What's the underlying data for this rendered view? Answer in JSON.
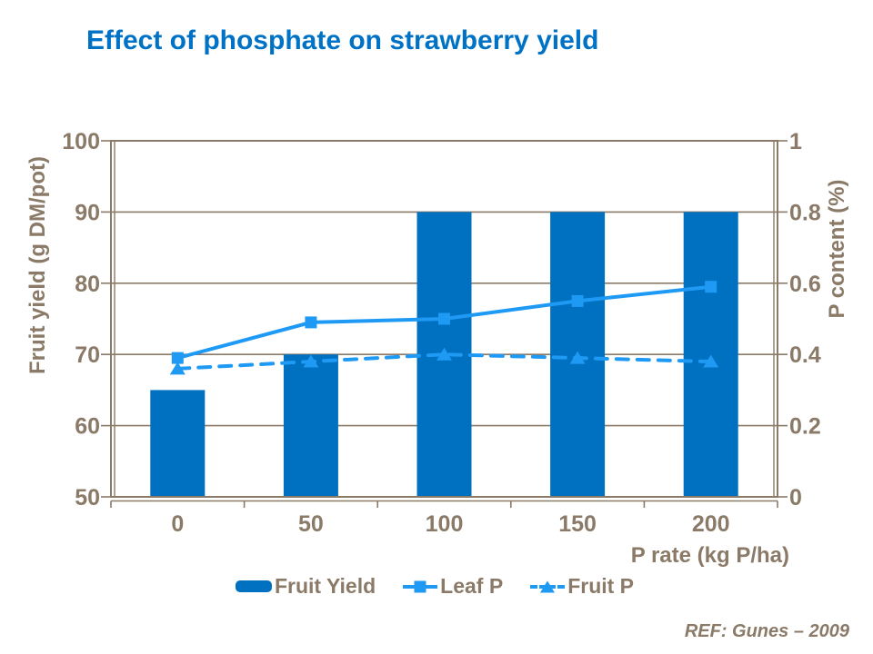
{
  "title": "Effect of phosphate on strawberry yield",
  "footer": {
    "ref": "REF: Gunes – 2009"
  },
  "colors": {
    "bar_series": "#0070C0",
    "line_series": "#1E9AF5",
    "axis_text": "#8A7A67",
    "grid": "#8A7A67",
    "title": "#0072C6",
    "background": "#FFFFFF"
  },
  "chart_data": {
    "type": "bar+line combo",
    "categories": [
      "0",
      "50",
      "100",
      "150",
      "200"
    ],
    "series": [
      {
        "name": "Fruit Yield",
        "type": "bar",
        "axis": "left",
        "values": [
          65,
          70,
          90,
          90,
          90
        ]
      },
      {
        "name": "Leaf P",
        "type": "line",
        "line_style": "solid",
        "marker": "square",
        "axis": "right",
        "values": [
          0.39,
          0.49,
          0.5,
          0.55,
          0.59
        ]
      },
      {
        "name": "Fruit P",
        "type": "line",
        "line_style": "dashed",
        "marker": "triangle",
        "axis": "right",
        "values": [
          0.36,
          0.38,
          0.4,
          0.39,
          0.38
        ]
      }
    ],
    "left_axis": {
      "label": "Fruit yield (g DM/pot)",
      "min": 50,
      "max": 100,
      "ticks": [
        50,
        60,
        70,
        80,
        90,
        100
      ],
      "tick_labels": [
        "50",
        "60",
        "70",
        "80",
        "90",
        "100"
      ]
    },
    "right_axis": {
      "label": "P content (%)",
      "min": 0,
      "max": 1,
      "ticks": [
        0,
        0.2,
        0.4,
        0.6,
        0.8,
        1
      ],
      "tick_labels": [
        "0",
        "0.2",
        "0.4",
        "0.6",
        "0.8",
        "1"
      ]
    },
    "x_axis": {
      "label": "P rate (kg P/ha)",
      "tick_labels": [
        "0",
        "50",
        "100",
        "150",
        "200"
      ]
    },
    "grid": "horizontal",
    "legend_position": "bottom"
  }
}
